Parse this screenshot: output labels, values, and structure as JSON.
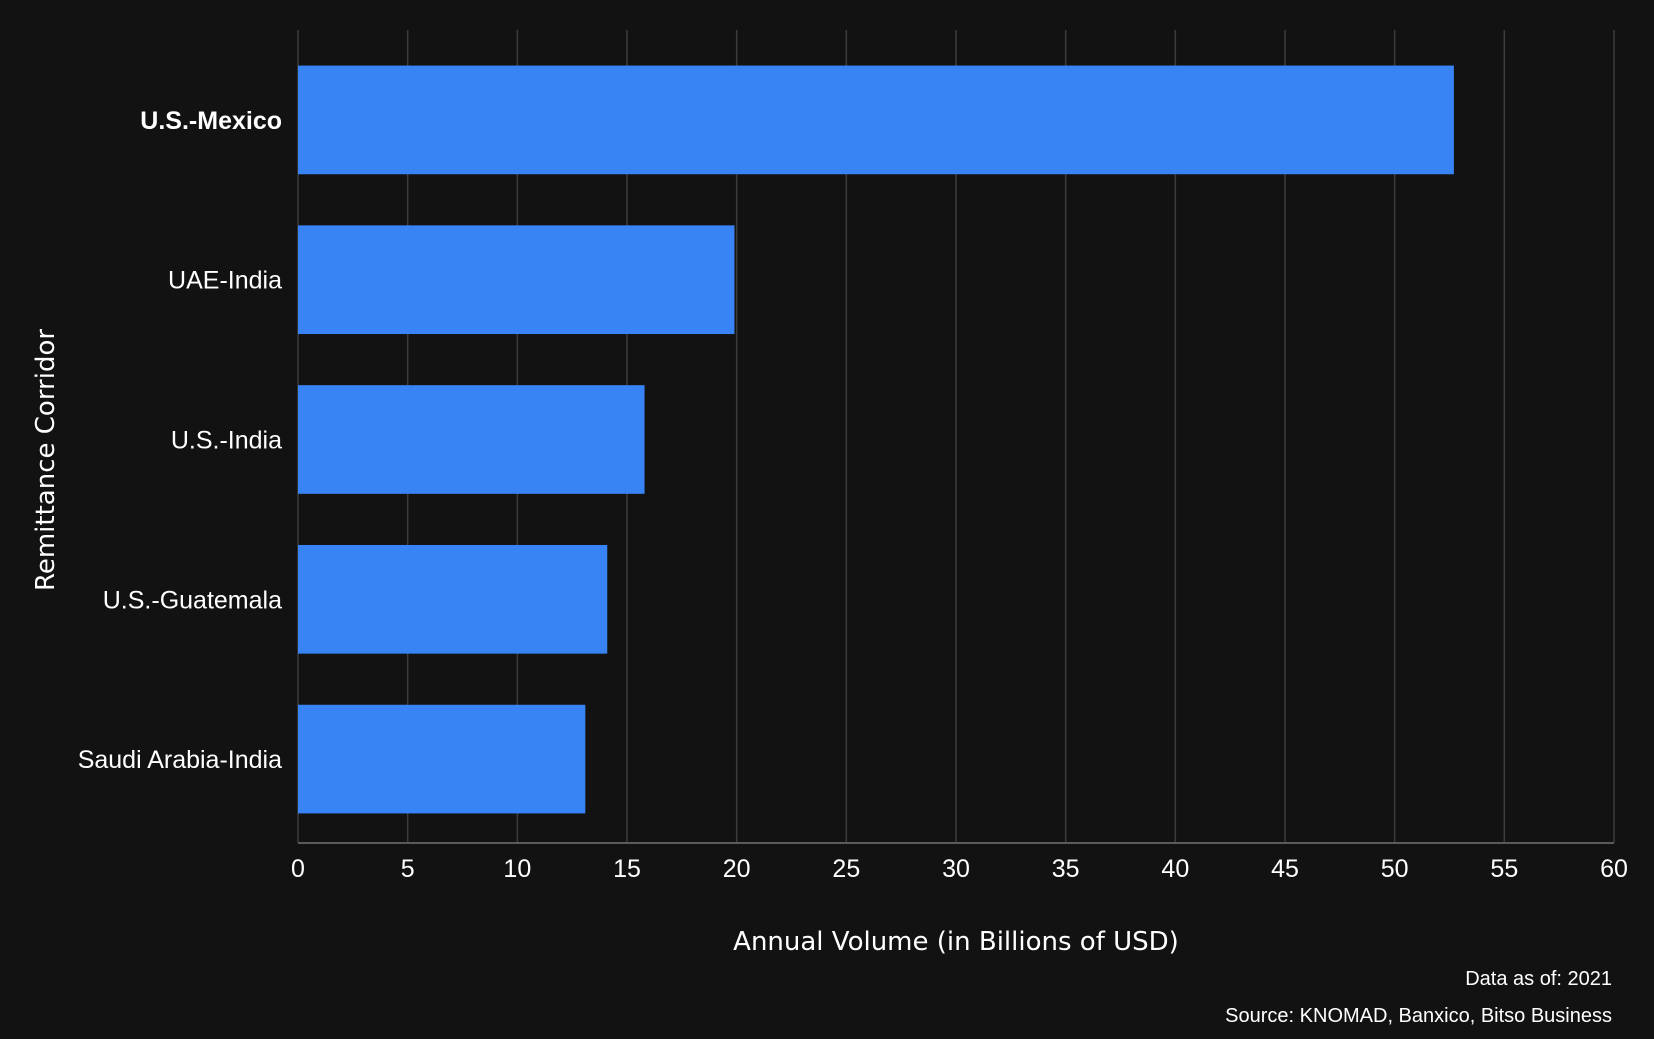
{
  "chart_data": {
    "type": "bar",
    "orientation": "horizontal",
    "categories": [
      "U.S.-Mexico",
      "UAE-India",
      "U.S.-India",
      "U.S.-Guatemala",
      "Saudi Arabia-India"
    ],
    "highlighted_category": "U.S.-Mexico",
    "values": [
      52.7,
      19.9,
      15.8,
      14.1,
      13.1
    ],
    "xlabel": "Annual Volume (in Billions of USD)",
    "ylabel": "Remittance Corridor",
    "xlim": [
      0,
      60
    ],
    "xticks": [
      0,
      5,
      10,
      15,
      20,
      25,
      30,
      35,
      40,
      45,
      50,
      55,
      60
    ],
    "grid": "vertical",
    "bar_color": "#3884F4",
    "gridline_color": "#3c3c3c",
    "background_color": "#121212",
    "text_color": "#ffffff"
  },
  "footnotes": {
    "data_as_of": "Data as of: 2021",
    "source": "Source: KNOMAD, Banxico, Bitso Business"
  }
}
